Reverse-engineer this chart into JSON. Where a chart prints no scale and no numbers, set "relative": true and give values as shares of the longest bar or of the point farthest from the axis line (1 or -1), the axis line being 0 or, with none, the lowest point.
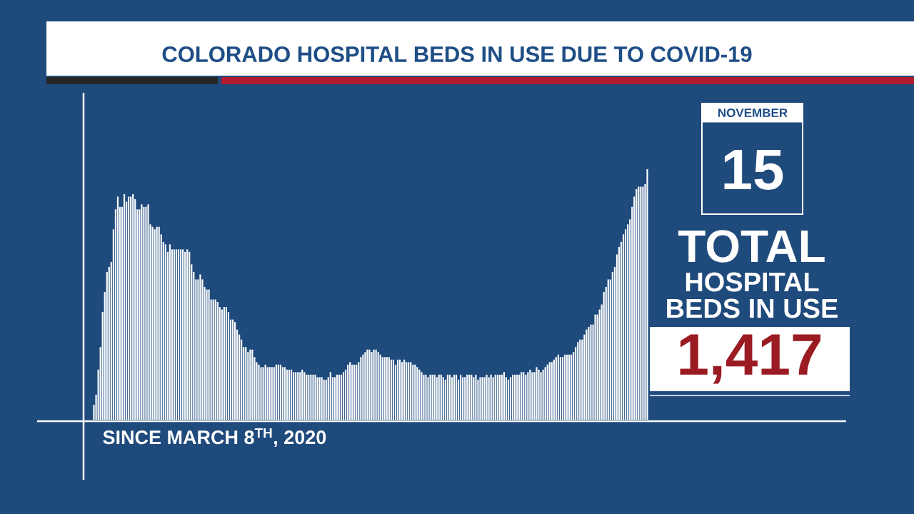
{
  "chart_data": {
    "type": "bar",
    "title": "COLORADO HOSPITAL BEDS IN USE DUE TO COVID-19",
    "relative": true,
    "color": "#ffffff",
    "categories": [
      null,
      null,
      null,
      null,
      null,
      null,
      null,
      null,
      null,
      null,
      null,
      null,
      null,
      null,
      null,
      null,
      null,
      null,
      null,
      null,
      null,
      null,
      null,
      null,
      null,
      null,
      null,
      null,
      null,
      null,
      null,
      null,
      null,
      null,
      null,
      null,
      null,
      null,
      null,
      null,
      null,
      null,
      null,
      null,
      null,
      null,
      null,
      null,
      null,
      null,
      null,
      null,
      null,
      null,
      null,
      null,
      null,
      null,
      null,
      null,
      null,
      null,
      null,
      null,
      null,
      null,
      null,
      null,
      null,
      null,
      null,
      null,
      null,
      null,
      null,
      null,
      null,
      null,
      null,
      null,
      null,
      null,
      null,
      null,
      null,
      null,
      null,
      null,
      null,
      null,
      null,
      null,
      null,
      null,
      null,
      null,
      null,
      null,
      null,
      null,
      null,
      null,
      null,
      null,
      null,
      null,
      null,
      null,
      null,
      null,
      null,
      null,
      null,
      null,
      null,
      null,
      null,
      null,
      null,
      null,
      null,
      null,
      null,
      null,
      null,
      null,
      null,
      null,
      null,
      null,
      null,
      null,
      null,
      null,
      null,
      null,
      null,
      null,
      null,
      null,
      null,
      null,
      null,
      null,
      null,
      null,
      null,
      null,
      null,
      null,
      null,
      null,
      null,
      null,
      null,
      null,
      null,
      null,
      null,
      null,
      null,
      null,
      null,
      null,
      null,
      null,
      null,
      null,
      null,
      null,
      null,
      null,
      null,
      null,
      null,
      null,
      null,
      null,
      null,
      null,
      null,
      null,
      null,
      null,
      null,
      null,
      null,
      null,
      null,
      null,
      null,
      null,
      null,
      null,
      null,
      null,
      null,
      null,
      null,
      null,
      null,
      null,
      null,
      null,
      null,
      null,
      null,
      null,
      null,
      null,
      null,
      null,
      null,
      null,
      null,
      null,
      null,
      null,
      null,
      null,
      null,
      null,
      null,
      null,
      null,
      null,
      null,
      null,
      null,
      null,
      null,
      null,
      null,
      null,
      null,
      null,
      null,
      null,
      null,
      null,
      null,
      null,
      null,
      null,
      null,
      null,
      null,
      null,
      null,
      null,
      null,
      null,
      null,
      null,
      null,
      null
    ],
    "values": [
      0.06,
      0.1,
      0.2,
      0.29,
      0.43,
      0.51,
      0.59,
      0.61,
      0.63,
      0.76,
      0.84,
      0.89,
      0.85,
      0.85,
      0.9,
      0.87,
      0.89,
      0.89,
      0.9,
      0.88,
      0.84,
      0.84,
      0.86,
      0.85,
      0.85,
      0.86,
      0.78,
      0.77,
      0.76,
      0.77,
      0.77,
      0.74,
      0.71,
      0.7,
      0.67,
      0.7,
      0.68,
      0.68,
      0.68,
      0.68,
      0.68,
      0.68,
      0.67,
      0.68,
      0.67,
      0.62,
      0.59,
      0.56,
      0.56,
      0.58,
      0.56,
      0.53,
      0.52,
      0.52,
      0.48,
      0.48,
      0.48,
      0.47,
      0.45,
      0.44,
      0.45,
      0.45,
      0.43,
      0.4,
      0.4,
      0.39,
      0.36,
      0.34,
      0.32,
      0.29,
      0.29,
      0.27,
      0.28,
      0.28,
      0.25,
      0.23,
      0.22,
      0.21,
      0.21,
      0.22,
      0.21,
      0.21,
      0.21,
      0.21,
      0.22,
      0.22,
      0.22,
      0.21,
      0.21,
      0.2,
      0.2,
      0.2,
      0.19,
      0.19,
      0.19,
      0.19,
      0.2,
      0.19,
      0.18,
      0.18,
      0.18,
      0.18,
      0.18,
      0.17,
      0.17,
      0.17,
      0.16,
      0.16,
      0.17,
      0.19,
      0.17,
      0.17,
      0.18,
      0.18,
      0.18,
      0.19,
      0.2,
      0.22,
      0.23,
      0.22,
      0.22,
      0.22,
      0.23,
      0.25,
      0.26,
      0.27,
      0.28,
      0.28,
      0.27,
      0.28,
      0.28,
      0.27,
      0.26,
      0.25,
      0.25,
      0.25,
      0.25,
      0.24,
      0.24,
      0.22,
      0.24,
      0.24,
      0.23,
      0.24,
      0.23,
      0.23,
      0.23,
      0.22,
      0.22,
      0.21,
      0.2,
      0.19,
      0.18,
      0.18,
      0.17,
      0.18,
      0.18,
      0.18,
      0.17,
      0.18,
      0.18,
      0.17,
      0.16,
      0.18,
      0.18,
      0.17,
      0.18,
      0.18,
      0.16,
      0.18,
      0.17,
      0.17,
      0.18,
      0.18,
      0.18,
      0.17,
      0.18,
      0.16,
      0.17,
      0.17,
      0.17,
      0.18,
      0.17,
      0.18,
      0.17,
      0.18,
      0.18,
      0.18,
      0.18,
      0.19,
      0.17,
      0.16,
      0.17,
      0.18,
      0.18,
      0.18,
      0.18,
      0.19,
      0.19,
      0.18,
      0.19,
      0.2,
      0.19,
      0.19,
      0.21,
      0.2,
      0.19,
      0.2,
      0.21,
      0.22,
      0.23,
      0.23,
      0.24,
      0.25,
      0.26,
      0.25,
      0.25,
      0.26,
      0.26,
      0.26,
      0.26,
      0.27,
      0.29,
      0.31,
      0.32,
      0.32,
      0.34,
      0.36,
      0.37,
      0.38,
      0.38,
      0.42,
      0.42,
      0.44,
      0.46,
      0.51,
      0.53,
      0.56,
      0.56,
      0.59,
      0.61,
      0.66,
      0.69,
      0.71,
      0.74,
      0.76,
      0.78,
      0.8,
      0.85,
      0.89,
      0.92,
      0.93,
      0.93,
      0.93,
      0.94,
      1.0
    ],
    "annotations": [
      "SINCE MARCH 8$^{TH}$, 2020",
      "NOVEMBER",
      "15",
      "TOTAL",
      "HOSPITAL",
      "BEDS IN USE",
      "1,417"
    ]
  }
}
